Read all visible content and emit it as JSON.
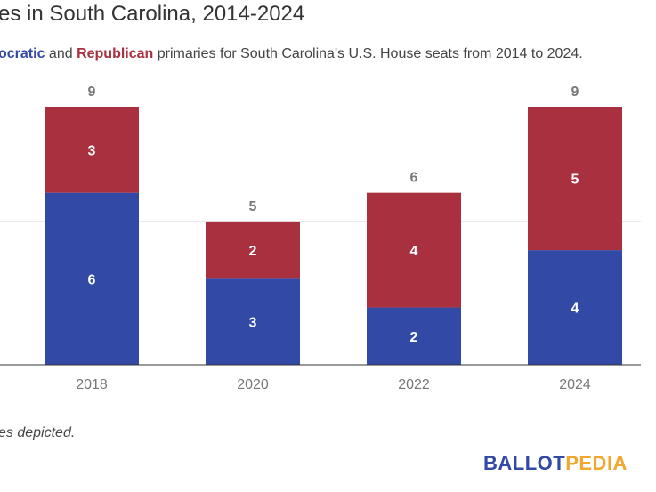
{
  "title": "es in South Carolina, 2014-2024",
  "subtitle": {
    "dem": "ocratic",
    "and": " and ",
    "rep": "Republican",
    "rest": " primaries for South Carolina's U.S. House seats from 2014 to 2024."
  },
  "note": "es depicted.",
  "logo": {
    "part1": "BALLOT",
    "part2": "PEDIA"
  },
  "colors": {
    "democratic": "#3349a6",
    "republican": "#a8303f"
  },
  "chart_data": {
    "type": "bar",
    "stacked": true,
    "categories": [
      "2018",
      "2020",
      "2022",
      "2024"
    ],
    "series": [
      {
        "name": "Democratic",
        "values": [
          6,
          3,
          2,
          4
        ]
      },
      {
        "name": "Republican",
        "values": [
          3,
          2,
          4,
          5
        ]
      }
    ],
    "totals": [
      9,
      5,
      6,
      9
    ],
    "ylim": [
      0,
      9
    ],
    "grid": true
  }
}
